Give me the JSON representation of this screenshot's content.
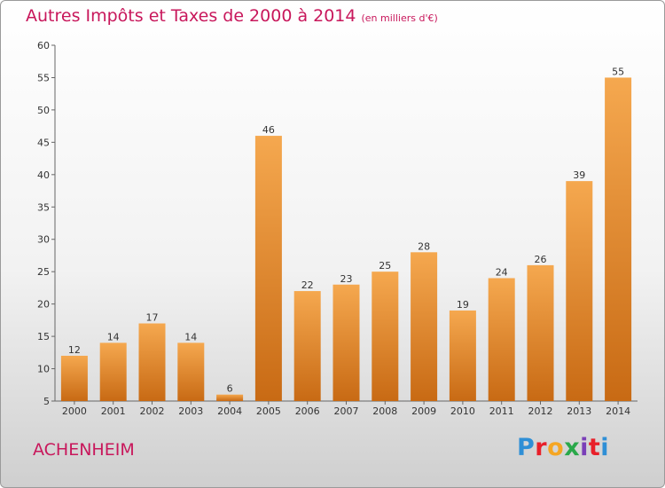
{
  "title": "Autres Impôts et Taxes de 2000 à 2014",
  "subtitle": "(en milliers d'€)",
  "commune": "ACHENHEIM",
  "logo": {
    "letters": [
      "P",
      "r",
      "o",
      "x",
      "i",
      "t",
      "i"
    ],
    "colors": [
      "#2f8fd6",
      "#e8202a",
      "#f5a623",
      "#2aa84a",
      "#7a3fb8",
      "#e8202a",
      "#2f8fd6"
    ]
  },
  "colors": {
    "bar_light": "#f5a84f",
    "bar_dark": "#c86a14",
    "accent": "#c8175b"
  },
  "chart_data": {
    "type": "bar",
    "title": "Autres Impôts et Taxes de 2000 à 2014",
    "subtitle": "(en milliers d'€)",
    "categories": [
      "2000",
      "2001",
      "2002",
      "2003",
      "2004",
      "2005",
      "2006",
      "2007",
      "2008",
      "2009",
      "2010",
      "2011",
      "2012",
      "2013",
      "2014"
    ],
    "values": [
      12,
      14,
      17,
      14,
      6,
      46,
      22,
      23,
      25,
      28,
      19,
      24,
      26,
      39,
      55
    ],
    "ylim": [
      5,
      60
    ],
    "yticks": [
      5,
      10,
      15,
      20,
      25,
      30,
      35,
      40,
      45,
      50,
      55,
      60
    ],
    "grid": false,
    "legend": "none"
  }
}
